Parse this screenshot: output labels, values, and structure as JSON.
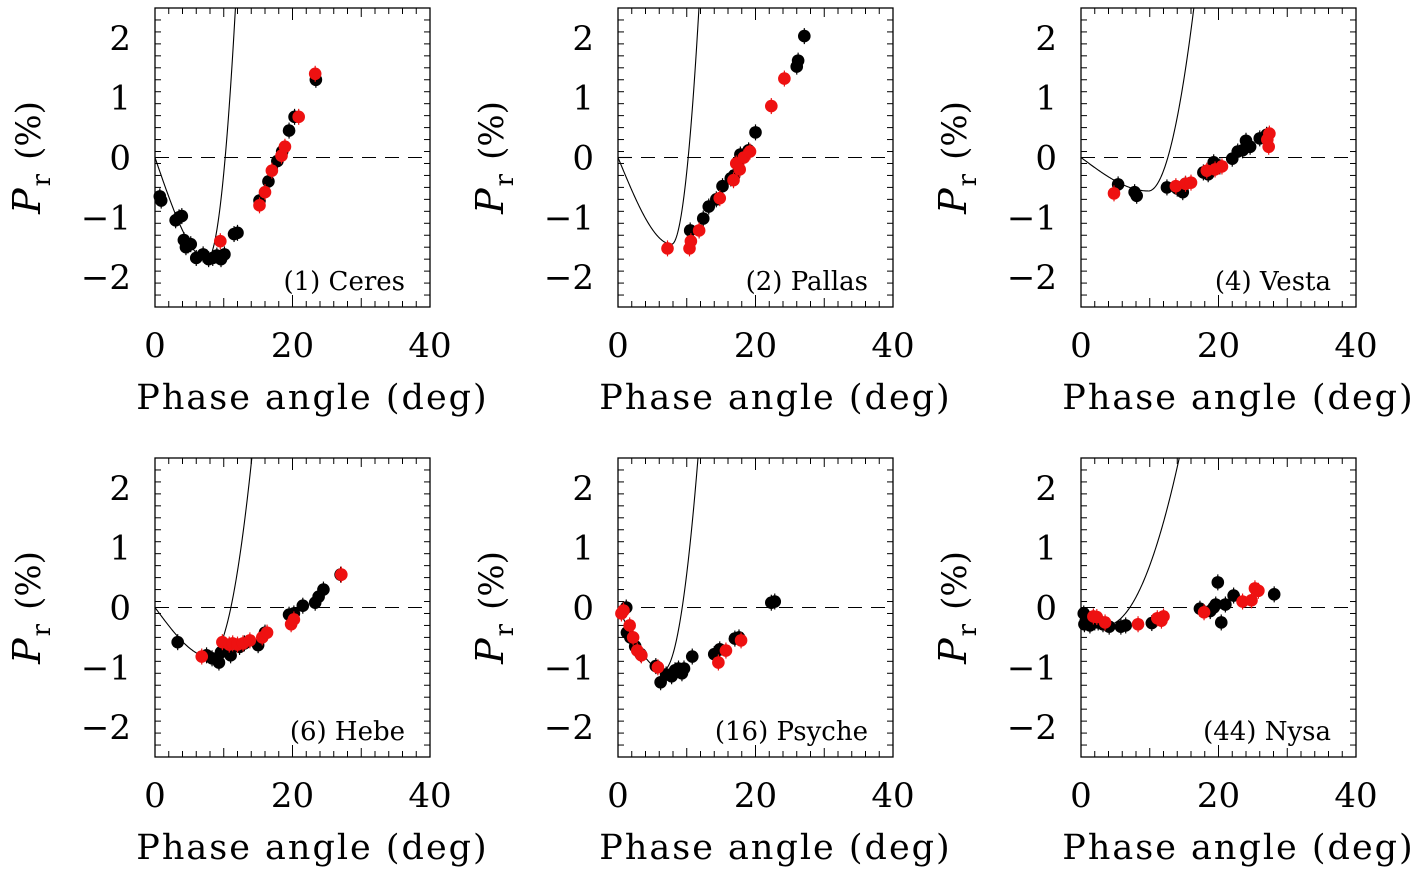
{
  "chart_data": [
    {
      "type": "scatter",
      "label": "(1) Ceres",
      "xlabel": "Phase angle (deg)",
      "ylabel": {
        "symbol": "P",
        "subscript": "r",
        "unit": "(%)"
      },
      "xlim": [
        0,
        40
      ],
      "ylim": [
        -2.5,
        2.5
      ],
      "xticks": [
        0,
        20,
        40
      ],
      "yticks": [
        -2,
        -1,
        0,
        1,
        2
      ],
      "zero_line": "dashed",
      "fit_curve": {
        "a0": 0.0,
        "amin": 7.6,
        "pmin": -1.7,
        "slope": 0.25,
        "xmax": 40
      },
      "series": [
        {
          "color": "#000000",
          "points": [
            [
              0.7,
              -0.65
            ],
            [
              0.9,
              -0.72
            ],
            [
              3.0,
              -1.05
            ],
            [
              3.5,
              -1.0
            ],
            [
              3.9,
              -0.98
            ],
            [
              4.2,
              -1.38
            ],
            [
              4.5,
              -1.5
            ],
            [
              4.8,
              -1.47
            ],
            [
              5.2,
              -1.45
            ],
            [
              6.0,
              -1.68
            ],
            [
              7.0,
              -1.62
            ],
            [
              7.8,
              -1.7
            ],
            [
              8.4,
              -1.68
            ],
            [
              9.0,
              -1.64
            ],
            [
              9.6,
              -1.7
            ],
            [
              10.1,
              -1.62
            ],
            [
              11.5,
              -1.28
            ],
            [
              12.0,
              -1.26
            ],
            [
              15.2,
              -0.72
            ],
            [
              16.5,
              -0.4
            ],
            [
              17.8,
              -0.06
            ],
            [
              18.5,
              0.1
            ],
            [
              19.5,
              0.45
            ],
            [
              20.3,
              0.68
            ],
            [
              23.4,
              1.3
            ]
          ]
        },
        {
          "color": "#ee1111",
          "points": [
            [
              9.5,
              -1.4
            ],
            [
              15.2,
              -0.8
            ],
            [
              16.0,
              -0.58
            ],
            [
              17.0,
              -0.22
            ],
            [
              18.4,
              0.03
            ],
            [
              18.9,
              0.18
            ],
            [
              20.9,
              0.68
            ],
            [
              23.3,
              1.4
            ]
          ]
        }
      ]
    },
    {
      "type": "scatter",
      "label": "(2) Pallas",
      "xlabel": "Phase angle (deg)",
      "ylabel": {
        "symbol": "P",
        "subscript": "r",
        "unit": "(%)"
      },
      "xlim": [
        0,
        40
      ],
      "ylim": [
        -2.5,
        2.5
      ],
      "xticks": [
        0,
        20,
        40
      ],
      "yticks": [
        -2,
        -1,
        0,
        1,
        2
      ],
      "zero_line": "dashed",
      "fit_curve": {
        "a0": 0.0,
        "amin": 7.8,
        "pmin": -1.45,
        "slope": 0.25,
        "xmax": 40
      },
      "series": [
        {
          "color": "#000000",
          "points": [
            [
              10.5,
              -1.22
            ],
            [
              12.4,
              -1.02
            ],
            [
              13.2,
              -0.82
            ],
            [
              14.3,
              -0.7
            ],
            [
              15.2,
              -0.48
            ],
            [
              16.4,
              -0.35
            ],
            [
              16.9,
              -0.3
            ],
            [
              17.4,
              -0.12
            ],
            [
              17.8,
              0.05
            ],
            [
              18.3,
              0.05
            ],
            [
              19.0,
              0.12
            ],
            [
              20.0,
              0.42
            ],
            [
              26.0,
              1.52
            ],
            [
              26.2,
              1.62
            ],
            [
              27.1,
              2.03
            ]
          ]
        },
        {
          "color": "#ee1111",
          "points": [
            [
              7.2,
              -1.52
            ],
            [
              10.4,
              -1.52
            ],
            [
              10.6,
              -1.4
            ],
            [
              11.8,
              -1.22
            ],
            [
              14.8,
              -0.68
            ],
            [
              16.8,
              -0.38
            ],
            [
              17.2,
              -0.1
            ],
            [
              17.7,
              -0.2
            ],
            [
              18.3,
              0.0
            ],
            [
              19.2,
              0.1
            ],
            [
              22.3,
              0.86
            ],
            [
              24.2,
              1.32
            ]
          ]
        }
      ]
    },
    {
      "type": "scatter",
      "label": "(4) Vesta",
      "xlabel": "Phase angle (deg)",
      "ylabel": {
        "symbol": "P",
        "subscript": "r",
        "unit": "(%)"
      },
      "xlim": [
        0,
        40
      ],
      "ylim": [
        -2.5,
        2.5
      ],
      "xticks": [
        0,
        20,
        40
      ],
      "yticks": [
        -2,
        -1,
        0,
        1,
        2
      ],
      "zero_line": "dashed",
      "fit_curve": {
        "a0": 0.0,
        "amin": 9.8,
        "pmin": -0.56,
        "slope": 0.07,
        "xmax": 40
      },
      "series": [
        {
          "color": "#000000",
          "points": [
            [
              5.4,
              -0.45
            ],
            [
              7.8,
              -0.58
            ],
            [
              8.1,
              -0.64
            ],
            [
              12.5,
              -0.5
            ],
            [
              14.0,
              -0.52
            ],
            [
              14.8,
              -0.58
            ],
            [
              15.2,
              -0.44
            ],
            [
              17.8,
              -0.25
            ],
            [
              18.5,
              -0.28
            ],
            [
              19.3,
              -0.08
            ],
            [
              20.2,
              -0.15
            ],
            [
              22.0,
              -0.02
            ],
            [
              22.8,
              0.1
            ],
            [
              23.5,
              0.12
            ],
            [
              24.0,
              0.28
            ],
            [
              24.6,
              0.18
            ],
            [
              26.0,
              0.32
            ],
            [
              27.0,
              0.38
            ]
          ]
        },
        {
          "color": "#ee1111",
          "points": [
            [
              4.8,
              -0.6
            ],
            [
              13.8,
              -0.48
            ],
            [
              15.2,
              -0.44
            ],
            [
              16.0,
              -0.42
            ],
            [
              18.3,
              -0.22
            ],
            [
              19.5,
              -0.2
            ],
            [
              20.5,
              -0.15
            ],
            [
              27.1,
              0.3
            ],
            [
              27.3,
              0.18
            ],
            [
              27.4,
              0.4
            ]
          ]
        }
      ]
    },
    {
      "type": "scatter",
      "label": "(6) Hebe",
      "xlabel": "Phase angle (deg)",
      "ylabel": {
        "symbol": "P",
        "subscript": "r",
        "unit": "(%)"
      },
      "xlim": [
        0,
        40
      ],
      "ylim": [
        -2.5,
        2.5
      ],
      "xticks": [
        0,
        20,
        40
      ],
      "yticks": [
        -2,
        -1,
        0,
        1,
        2
      ],
      "zero_line": "dashed",
      "fit_curve": {
        "a0": 0.0,
        "amin": 8.0,
        "pmin": -0.83,
        "slope": 0.09,
        "xmax": 40
      },
      "series": [
        {
          "color": "#000000",
          "points": [
            [
              3.3,
              -0.58
            ],
            [
              7.5,
              -0.8
            ],
            [
              8.3,
              -0.85
            ],
            [
              9.3,
              -0.92
            ],
            [
              9.6,
              -0.75
            ],
            [
              11.0,
              -0.8
            ],
            [
              12.3,
              -0.66
            ],
            [
              13.0,
              -0.6
            ],
            [
              15.0,
              -0.63
            ],
            [
              16.0,
              -0.42
            ],
            [
              19.5,
              -0.12
            ],
            [
              20.2,
              -0.1
            ],
            [
              21.5,
              0.03
            ],
            [
              23.3,
              0.08
            ],
            [
              23.8,
              0.18
            ],
            [
              24.5,
              0.3
            ],
            [
              27.0,
              0.55
            ]
          ]
        },
        {
          "color": "#ee1111",
          "points": [
            [
              6.8,
              -0.82
            ],
            [
              9.8,
              -0.58
            ],
            [
              10.8,
              -0.62
            ],
            [
              11.3,
              -0.6
            ],
            [
              12.0,
              -0.62
            ],
            [
              12.8,
              -0.6
            ],
            [
              13.8,
              -0.55
            ],
            [
              15.6,
              -0.5
            ],
            [
              16.3,
              -0.42
            ],
            [
              19.8,
              -0.28
            ],
            [
              20.2,
              -0.2
            ],
            [
              27.1,
              0.55
            ]
          ]
        }
      ]
    },
    {
      "type": "scatter",
      "label": "(16) Psyche",
      "xlabel": "Phase angle (deg)",
      "ylabel": {
        "symbol": "P",
        "subscript": "r",
        "unit": "(%)"
      },
      "xlim": [
        0,
        40
      ],
      "ylim": [
        -2.5,
        2.5
      ],
      "xticks": [
        0,
        20,
        40
      ],
      "yticks": [
        -2,
        -1,
        0,
        1,
        2
      ],
      "zero_line": "dashed",
      "fit_curve": {
        "a0": 0.0,
        "amin": 6.6,
        "pmin": -1.05,
        "slope": 0.14,
        "xmax": 40
      },
      "series": [
        {
          "color": "#000000",
          "points": [
            [
              1.2,
              0.0
            ],
            [
              1.3,
              -0.42
            ],
            [
              1.8,
              -0.5
            ],
            [
              2.5,
              -0.65
            ],
            [
              3.3,
              -0.78
            ],
            [
              5.5,
              -0.98
            ],
            [
              6.2,
              -1.25
            ],
            [
              7.0,
              -1.12
            ],
            [
              7.8,
              -1.15
            ],
            [
              8.3,
              -1.05
            ],
            [
              8.8,
              -1.02
            ],
            [
              9.3,
              -1.1
            ],
            [
              9.6,
              -1.02
            ],
            [
              10.8,
              -0.82
            ],
            [
              14.0,
              -0.78
            ],
            [
              14.8,
              -0.7
            ],
            [
              17.0,
              -0.52
            ],
            [
              17.6,
              -0.5
            ],
            [
              22.3,
              0.08
            ],
            [
              22.8,
              0.1
            ]
          ]
        },
        {
          "color": "#ee1111",
          "points": [
            [
              0.5,
              -0.1
            ],
            [
              0.8,
              -0.05
            ],
            [
              1.7,
              -0.3
            ],
            [
              2.2,
              -0.5
            ],
            [
              2.8,
              -0.72
            ],
            [
              3.4,
              -0.8
            ],
            [
              5.8,
              -1.0
            ],
            [
              14.6,
              -0.92
            ],
            [
              15.7,
              -0.72
            ],
            [
              17.9,
              -0.55
            ]
          ]
        }
      ]
    },
    {
      "type": "scatter",
      "label": "(44) Nysa",
      "xlabel": "Phase angle (deg)",
      "ylabel": {
        "symbol": "P",
        "subscript": "r",
        "unit": "(%)"
      },
      "xlim": [
        0,
        40
      ],
      "ylim": [
        -2.5,
        2.5
      ],
      "xticks": [
        0,
        20,
        40
      ],
      "yticks": [
        -2,
        -1,
        0,
        1,
        2
      ],
      "zero_line": "dashed",
      "fit_curve": {
        "a0": 0.0,
        "amin": 3.6,
        "pmin": -0.3,
        "slope": 0.0245,
        "xmax": 40
      },
      "series": [
        {
          "color": "#000000",
          "points": [
            [
              0.4,
              -0.1
            ],
            [
              0.5,
              -0.28
            ],
            [
              0.7,
              -0.22
            ],
            [
              1.0,
              -0.18
            ],
            [
              1.3,
              -0.3
            ],
            [
              2.0,
              -0.25
            ],
            [
              2.5,
              -0.25
            ],
            [
              3.2,
              -0.28
            ],
            [
              4.1,
              -0.32
            ],
            [
              5.8,
              -0.32
            ],
            [
              6.5,
              -0.3
            ],
            [
              10.3,
              -0.26
            ],
            [
              17.3,
              -0.02
            ],
            [
              18.8,
              -0.06
            ],
            [
              19.3,
              0.0
            ],
            [
              19.6,
              0.05
            ],
            [
              19.9,
              0.42
            ],
            [
              20.4,
              -0.25
            ],
            [
              21.0,
              0.05
            ],
            [
              22.2,
              0.2
            ],
            [
              28.1,
              0.22
            ]
          ]
        },
        {
          "color": "#ee1111",
          "points": [
            [
              1.8,
              -0.15
            ],
            [
              2.3,
              -0.16
            ],
            [
              3.5,
              -0.25
            ],
            [
              8.3,
              -0.28
            ],
            [
              11.1,
              -0.18
            ],
            [
              11.7,
              -0.22
            ],
            [
              12.0,
              -0.15
            ],
            [
              17.9,
              -0.08
            ],
            [
              23.5,
              0.1
            ],
            [
              24.8,
              0.12
            ],
            [
              25.3,
              0.32
            ],
            [
              25.8,
              0.28
            ]
          ]
        }
      ]
    }
  ]
}
